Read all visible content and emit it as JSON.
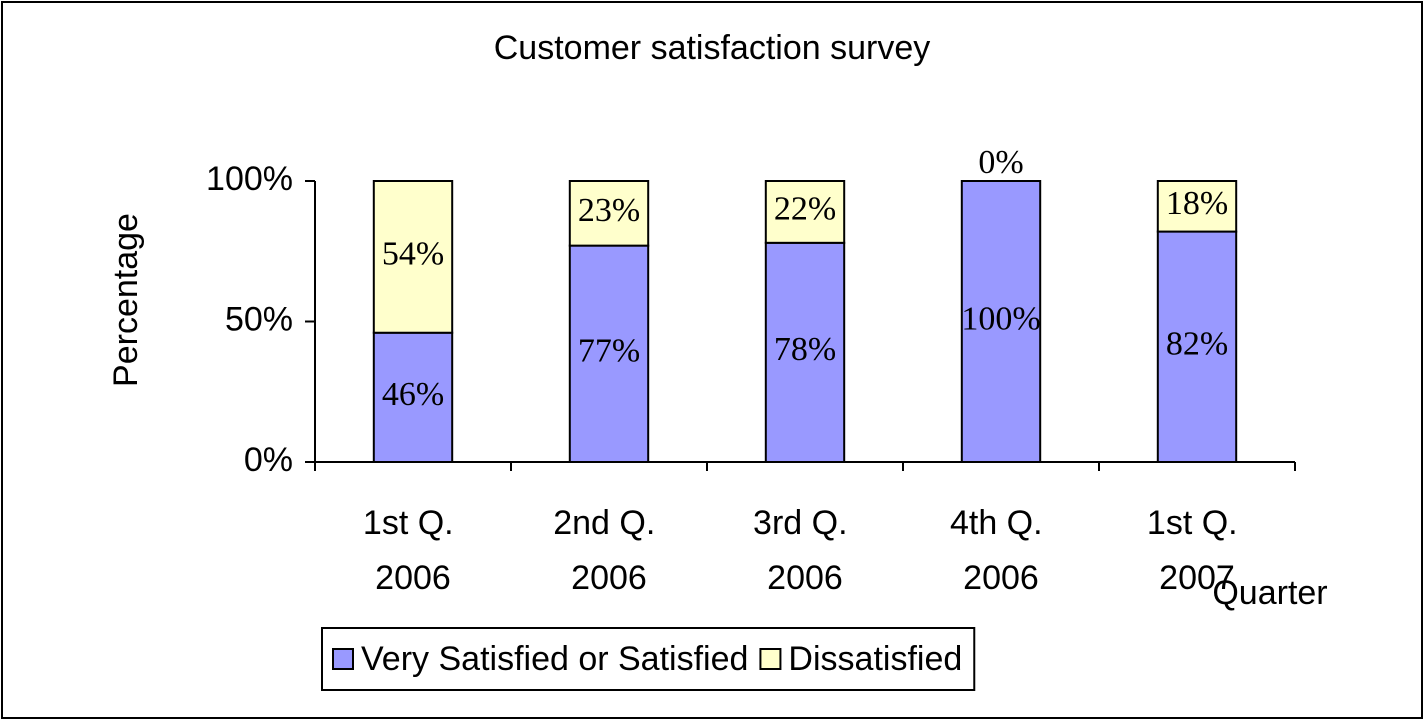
{
  "chart_data": {
    "type": "stacked-bar",
    "title": "Customer satisfaction survey",
    "y_label": "Percentage",
    "x_label": "Quarter",
    "categories": [
      "1st Q. 2006",
      "2nd Q. 2006",
      "3rd Q. 2006",
      "4th Q. 2006",
      "1st Q. 2007"
    ],
    "series": [
      {
        "name": "Very Satisfied or Satisfied",
        "color": "#9999ff",
        "values": [
          46,
          77,
          78,
          100,
          82
        ],
        "value_labels": [
          "46%",
          "77%",
          "78%",
          "100%",
          "82%"
        ]
      },
      {
        "name": "Dissatisfied",
        "color": "#ffffcc",
        "values": [
          54,
          23,
          22,
          0,
          18
        ],
        "value_labels": [
          "54%",
          "23%",
          "22%",
          "0%",
          "18%"
        ]
      }
    ],
    "ylim": [
      0,
      100
    ],
    "yticks": [
      {
        "value": 0,
        "label": "0%"
      },
      {
        "value": 50,
        "label": "50%"
      },
      {
        "value": 100,
        "label": "100%"
      }
    ],
    "legend": "bottom"
  }
}
